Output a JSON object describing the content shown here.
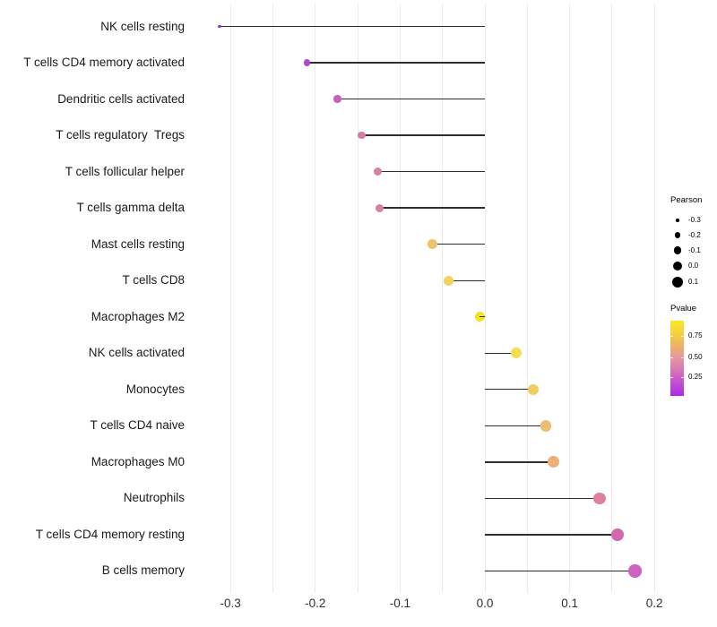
{
  "chart_data": {
    "type": "scatter",
    "subtype": "lollipop",
    "title": "",
    "xlabel": "",
    "ylabel": "",
    "xlim": [
      -0.345,
      0.215
    ],
    "xticks": [
      "-0.3",
      "-0.2",
      "-0.1",
      "0.0",
      "0.1",
      "0.2"
    ],
    "xtick_values": [
      -0.3,
      -0.2,
      -0.1,
      0.0,
      0.1,
      0.2
    ],
    "gridlines": [
      -0.3,
      -0.25,
      -0.2,
      -0.15,
      -0.1,
      -0.05,
      0.0,
      0.05,
      0.1,
      0.15,
      0.2
    ],
    "grid_color": "#ebebeb",
    "stem_color": "#2e2e2e",
    "legend_position": "right",
    "points": [
      {
        "label": "NK cells resting",
        "pearson": -0.313,
        "pvalue": 0.1,
        "color": "#9232d2",
        "r": 1.7
      },
      {
        "label": "T cells CD4 memory activated",
        "pearson": -0.21,
        "pvalue": 0.16,
        "color": "#ab4bce",
        "r": 3.6
      },
      {
        "label": "Dendritic cells activated",
        "pearson": -0.174,
        "pvalue": 0.3,
        "color": "#c55fc0",
        "r": 4.2
      },
      {
        "label": "T cells regulatory  Tregs",
        "pearson": -0.145,
        "pvalue": 0.44,
        "color": "#d67da4",
        "r": 4.4
      },
      {
        "label": "T cells follicular helper",
        "pearson": -0.126,
        "pvalue": 0.46,
        "color": "#d8809f",
        "r": 4.6
      },
      {
        "label": "T cells gamma delta",
        "pearson": -0.124,
        "pvalue": 0.46,
        "color": "#d8809f",
        "r": 4.6
      },
      {
        "label": "Mast cells resting",
        "pearson": -0.062,
        "pvalue": 0.74,
        "color": "#f0c369",
        "r": 5.2
      },
      {
        "label": "T cells CD8",
        "pearson": -0.043,
        "pvalue": 0.78,
        "color": "#f3d35f",
        "r": 5.4
      },
      {
        "label": "Macrophages M2",
        "pearson": -0.006,
        "pvalue": 0.93,
        "color": "#f5e41c",
        "r": 5.7
      },
      {
        "label": "NK cells activated",
        "pearson": 0.037,
        "pvalue": 0.85,
        "color": "#f4dd52",
        "r": 5.9
      },
      {
        "label": "Monocytes",
        "pearson": 0.057,
        "pvalue": 0.78,
        "color": "#f1cb63",
        "r": 6.1
      },
      {
        "label": "T cells CD4 naive",
        "pearson": 0.072,
        "pvalue": 0.72,
        "color": "#eebc72",
        "r": 6.2
      },
      {
        "label": "Macrophages M0",
        "pearson": 0.081,
        "pvalue": 0.7,
        "color": "#ebb179",
        "r": 6.4
      },
      {
        "label": "Neutrophils",
        "pearson": 0.135,
        "pvalue": 0.48,
        "color": "#de7f9c",
        "r": 6.8
      },
      {
        "label": "T cells CD4 memory resting",
        "pearson": 0.156,
        "pvalue": 0.4,
        "color": "#d367af",
        "r": 7.0
      },
      {
        "label": "B cells memory",
        "pearson": 0.177,
        "pvalue": 0.34,
        "color": "#cd62c3",
        "r": 7.2
      }
    ],
    "legend_pearson": {
      "title": "Pearson",
      "entries": [
        {
          "label": "-0.3",
          "r": 1.7
        },
        {
          "label": "-0.2",
          "r": 3.3
        },
        {
          "label": "-0.1",
          "r": 4.3
        },
        {
          "label": "0.0",
          "r": 5.3
        },
        {
          "label": "0.1",
          "r": 6.0
        }
      ]
    },
    "legend_pvalue": {
      "title": "Pvalue",
      "ticks": [
        {
          "label": "0.75",
          "offset": 17
        },
        {
          "label": "0.50",
          "offset": 41
        },
        {
          "label": "0.25",
          "offset": 63
        }
      ],
      "gradient": [
        "#f9e926",
        "#f6d23e",
        "#eeb263",
        "#e498a2",
        "#d873b4",
        "#c04fd4",
        "#aa2be0"
      ]
    }
  }
}
